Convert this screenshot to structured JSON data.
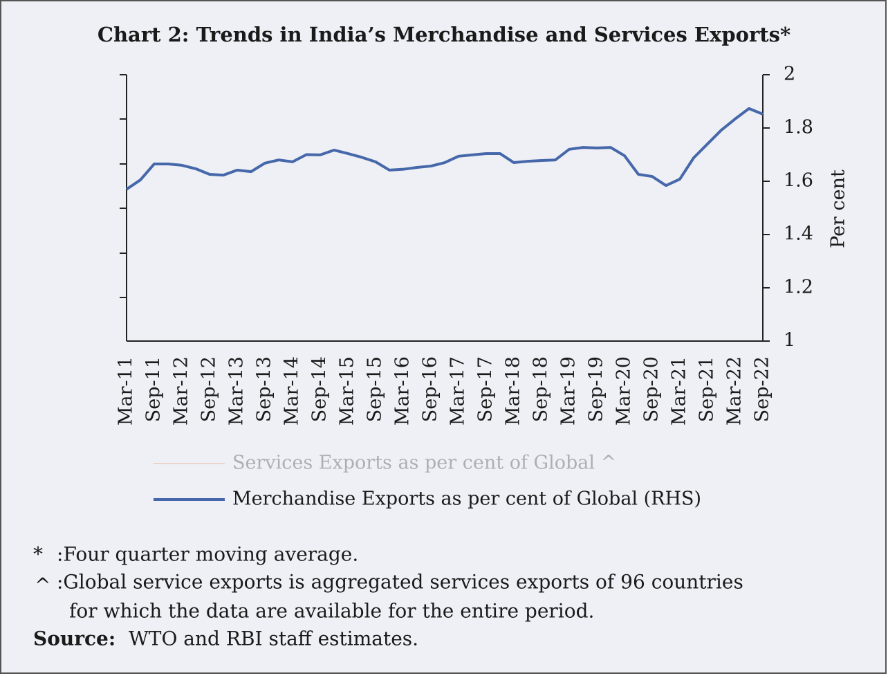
{
  "chart_data": {
    "type": "line",
    "title": "Chart 2: Trends in India’s Merchandise and Services Exports*",
    "y2label": "Per cent",
    "categories": [
      "Mar-11",
      null,
      "Sep-11",
      null,
      "Mar-12",
      null,
      "Sep-12",
      null,
      "Mar-13",
      null,
      "Sep-13",
      null,
      "Mar-14",
      null,
      "Sep-14",
      null,
      "Mar-15",
      null,
      "Sep-15",
      null,
      "Mar-16",
      null,
      "Sep-16",
      null,
      "Mar-17",
      null,
      "Sep-17",
      null,
      "Mar-18",
      null,
      "Sep-18",
      null,
      "Mar-19",
      null,
      "Sep-19",
      null,
      "Mar-20",
      null,
      "Sep-20",
      null,
      "Mar-21",
      null,
      "Sep-21",
      null,
      "Mar-22",
      null,
      "Sep-22"
    ],
    "series": [
      {
        "name": "Services Exports as per cent of Global ^",
        "color": "#e8a27a"
      },
      {
        "name": "Merchandise Exports as per cent of Global (RHS)",
        "color": "#4668aa",
        "axis": "y2",
        "values": [
          1.57,
          1.605,
          1.665,
          1.665,
          1.66,
          1.647,
          1.626,
          1.623,
          1.642,
          1.636,
          1.668,
          1.68,
          1.673,
          1.7,
          1.699,
          1.717,
          1.704,
          1.69,
          1.673,
          1.642,
          1.645,
          1.652,
          1.657,
          1.67,
          1.694,
          1.699,
          1.704,
          1.704,
          1.67,
          1.675,
          1.678,
          1.68,
          1.72,
          1.727,
          1.725,
          1.727,
          1.696,
          1.626,
          1.618,
          1.584,
          1.608,
          1.688,
          1.74,
          1.792,
          1.834,
          1.873,
          1.852
        ]
      }
    ],
    "y2lim": [
      1,
      2
    ],
    "y2ticks": [
      1,
      {
        "value": 1.2,
        "label": "1.2"
      },
      {
        "value": 1.4,
        "label": "1.4"
      },
      {
        "value": 1.6,
        "label": "1.6"
      },
      {
        "value": 1.8,
        "label": "1.8"
      },
      2
    ]
  },
  "notes": [
    {
      "symbol": "*",
      "text": ":Four quarter moving average."
    },
    {
      "symbol": "^",
      "text": ":Global service exports is aggregated services exports of 96 countries",
      "text2": "for which the data are available for the entire period."
    }
  ],
  "source": {
    "label": "Source:",
    "text": "WTO and RBI staff estimates."
  }
}
